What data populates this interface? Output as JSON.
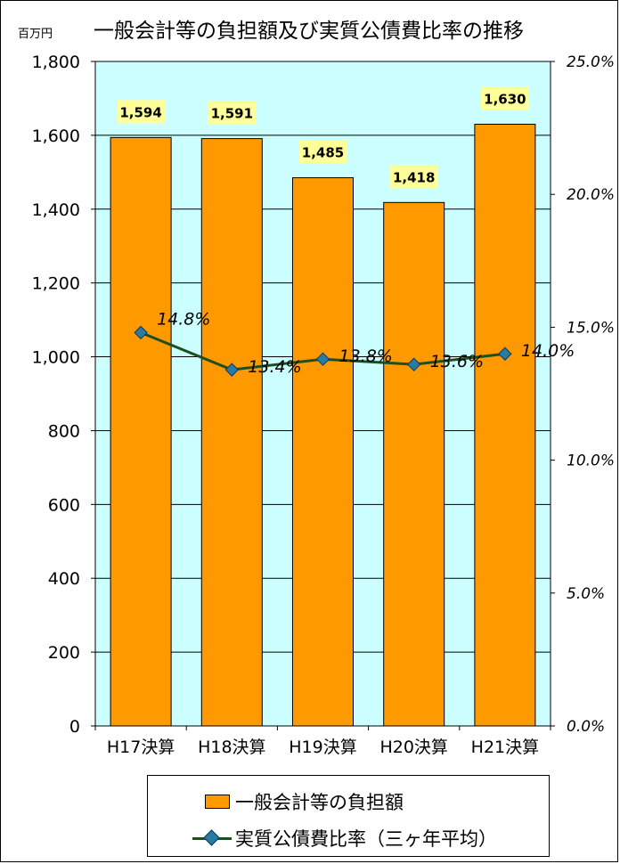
{
  "chart_data": {
    "type": "bar",
    "title": "一般会計等の負担額及び実質公債費比率の推移",
    "y_unit_label": "百万円",
    "categories": [
      "H17決算",
      "H18決算",
      "H19決算",
      "H20決算",
      "H21決算"
    ],
    "left_axis": {
      "min": 0,
      "max": 1800,
      "ticks": [
        0,
        200,
        400,
        600,
        800,
        1000,
        1200,
        1400,
        1600,
        1800
      ],
      "tick_labels": [
        "0",
        "200",
        "400",
        "600",
        "800",
        "1,000",
        "1,200",
        "1,400",
        "1,600",
        "1,800"
      ]
    },
    "right_axis": {
      "min": 0,
      "max": 25,
      "ticks": [
        0,
        5,
        10,
        15,
        20,
        25
      ],
      "tick_labels": [
        "0.0%",
        "5.0%",
        "10.0%",
        "15.0%",
        "20.0%",
        "25.0%"
      ]
    },
    "series": [
      {
        "name": "一般会計等の負担額",
        "type": "bar",
        "axis": "left",
        "values": [
          1594,
          1591,
          1485,
          1418,
          1630
        ],
        "labels": [
          "1,594",
          "1,591",
          "1,485",
          "1,418",
          "1,630"
        ]
      },
      {
        "name": "実質公債費比率（三ヶ年平均）",
        "type": "line",
        "axis": "right",
        "values": [
          14.8,
          13.4,
          13.8,
          13.6,
          14.0
        ],
        "labels": [
          "14.8%",
          "13.4%",
          "13.8%",
          "13.6%",
          "14.0%"
        ]
      }
    ],
    "grid": true,
    "legend_position": "bottom",
    "colors": {
      "plot_bg": "#CCFFFF",
      "bar": "#FF9900",
      "label_bg": "#FFFF99",
      "line": "#1F4E1F",
      "marker": "#2B7BA0"
    }
  }
}
